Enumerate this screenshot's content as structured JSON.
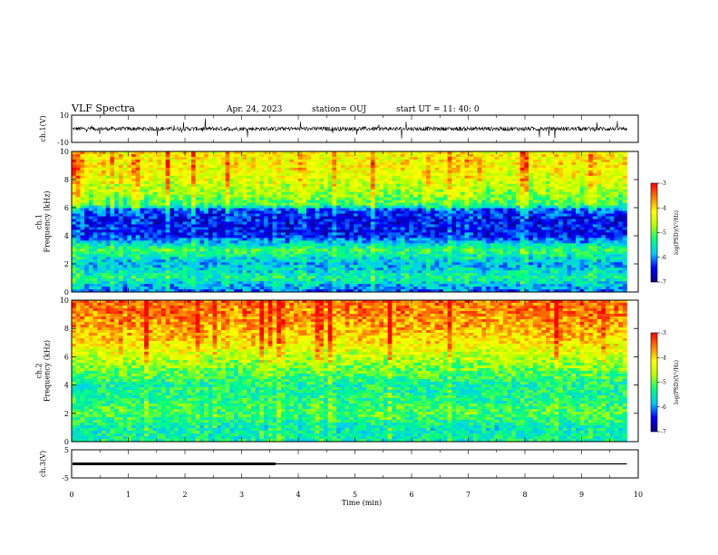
{
  "header": {
    "title": "VLF Spectra",
    "date": "Apr. 24, 2023",
    "station": "station= OUJ",
    "start": "start  UT  =   11: 40: 0"
  },
  "colors": {
    "cb_stops": [
      "#0b0080",
      "#0000ff",
      "#00c8ff",
      "#00ff7f",
      "#b4ff00",
      "#ffff00",
      "#ff7f00",
      "#ff0000",
      "#ffffff"
    ],
    "trace": "#000000"
  },
  "chart_data": [
    {
      "type": "line",
      "name": "ch1-voltage",
      "ylabel": "ch.1(V)",
      "ylim": [
        -10,
        10
      ],
      "yticks": [
        "10",
        "-10"
      ],
      "xlim": [
        0,
        10
      ],
      "trace_end": 9.8,
      "baseline": 0,
      "noise_amplitude": 1.5
    },
    {
      "type": "heatmap",
      "name": "ch1-spectrogram",
      "ylabel": "ch.1\nFrequency  (kHz)",
      "ylim": [
        0,
        10
      ],
      "yticks": [
        "0",
        "2",
        "4",
        "6",
        "8",
        "10"
      ],
      "xlim": [
        0,
        10
      ],
      "data_end": 9.8,
      "zlim": [
        -7,
        -3
      ],
      "colorbar": {
        "label": "log(PSD)(V²/Hz)",
        "ticks": [
          "-3",
          "-4",
          "-5",
          "-6",
          "-7"
        ]
      },
      "profile": [
        {
          "f": 0.0,
          "z": -6.2
        },
        {
          "f": 1.0,
          "z": -5.4
        },
        {
          "f": 2.0,
          "z": -5.9
        },
        {
          "f": 3.0,
          "z": -5.2
        },
        {
          "f": 4.0,
          "z": -6.4
        },
        {
          "f": 5.0,
          "z": -6.5
        },
        {
          "f": 5.8,
          "z": -6.3
        },
        {
          "f": 6.2,
          "z": -5.2
        },
        {
          "f": 7.0,
          "z": -4.8
        },
        {
          "f": 8.0,
          "z": -4.4
        },
        {
          "f": 9.0,
          "z": -4.2
        },
        {
          "f": 10.0,
          "z": -4.2
        }
      ]
    },
    {
      "type": "heatmap",
      "name": "ch2-spectrogram",
      "ylabel": "ch.2\nFrequency  (kHz)",
      "ylim": [
        0,
        10
      ],
      "yticks": [
        "0",
        "2",
        "4",
        "6",
        "8",
        "10"
      ],
      "xlim": [
        0,
        10
      ],
      "data_end": 9.8,
      "zlim": [
        -7,
        -3
      ],
      "colorbar": {
        "label": "log(PSD)(V²/Hz)",
        "ticks": [
          "-3",
          "-4",
          "-5",
          "-6",
          "-7"
        ]
      },
      "profile": [
        {
          "f": 0.0,
          "z": -5.4
        },
        {
          "f": 1.0,
          "z": -5.5
        },
        {
          "f": 2.0,
          "z": -5.1
        },
        {
          "f": 3.0,
          "z": -5.3
        },
        {
          "f": 4.0,
          "z": -5.4
        },
        {
          "f": 5.0,
          "z": -5.0
        },
        {
          "f": 6.0,
          "z": -4.6
        },
        {
          "f": 7.0,
          "z": -4.1
        },
        {
          "f": 8.0,
          "z": -3.8
        },
        {
          "f": 9.0,
          "z": -3.6
        },
        {
          "f": 10.0,
          "z": -3.5
        }
      ]
    },
    {
      "type": "line",
      "name": "ch3-voltage",
      "ylabel": "ch.3(V)",
      "ylim": [
        -5,
        5
      ],
      "yticks": [
        "5",
        "-5"
      ],
      "xlim": [
        0,
        10
      ],
      "trace_end": 9.8,
      "level": 0,
      "thick_until": 3.6
    }
  ],
  "xaxis": {
    "label": "Time  (min)",
    "ticks": [
      "0",
      "1",
      "2",
      "3",
      "4",
      "5",
      "6",
      "7",
      "8",
      "9",
      "10"
    ]
  }
}
